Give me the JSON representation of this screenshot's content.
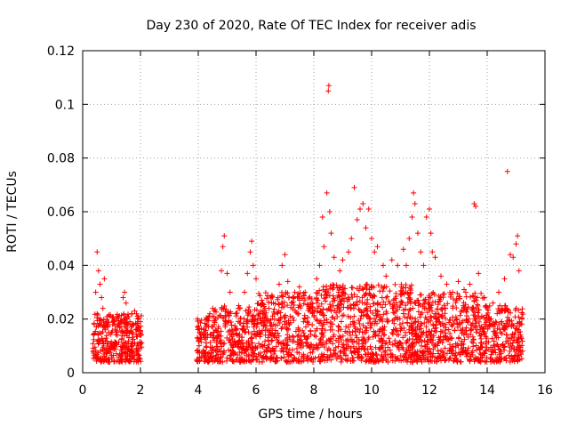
{
  "chart_data": {
    "type": "scatter",
    "title": "Day 230 of 2020, Rate Of TEC Index for receiver adis",
    "xlabel": "GPS time / hours",
    "ylabel": "ROTI / TECUs",
    "xlim": [
      0,
      16
    ],
    "ylim": [
      0,
      0.12
    ],
    "x_ticks": [
      0,
      2,
      4,
      6,
      8,
      10,
      12,
      14,
      16
    ],
    "x_tick_labels": [
      "0",
      "2",
      "4",
      "6",
      "8",
      "10",
      "12",
      "14",
      "16"
    ],
    "y_ticks": [
      0,
      0.02,
      0.04,
      0.06,
      0.08,
      0.1,
      0.12
    ],
    "y_tick_labels": [
      "0",
      "0.02",
      "0.04",
      "0.06",
      "0.08",
      "0.1",
      "0.12"
    ],
    "grid": true,
    "marker": "+",
    "color": "#ff0000",
    "series": [
      {
        "name": "ROTI",
        "points": [
          [
            0.45,
            0.03
          ],
          [
            0.5,
            0.045
          ],
          [
            0.55,
            0.038
          ],
          [
            0.6,
            0.033
          ],
          [
            0.65,
            0.028
          ],
          [
            0.7,
            0.024
          ],
          [
            0.75,
            0.035
          ],
          [
            0.4,
            0.018
          ],
          [
            0.5,
            0.022
          ],
          [
            0.6,
            0.02
          ],
          [
            0.8,
            0.019
          ],
          [
            1.0,
            0.015
          ],
          [
            1.2,
            0.017
          ],
          [
            1.4,
            0.028
          ],
          [
            1.45,
            0.03
          ],
          [
            1.5,
            0.026
          ],
          [
            1.7,
            0.022
          ],
          [
            1.8,
            0.023
          ],
          [
            1.9,
            0.021
          ],
          [
            2.0,
            0.019
          ],
          [
            4.3,
            0.018
          ],
          [
            4.4,
            0.022
          ],
          [
            4.5,
            0.024
          ],
          [
            4.6,
            0.02
          ],
          [
            4.8,
            0.038
          ],
          [
            4.85,
            0.047
          ],
          [
            4.9,
            0.051
          ],
          [
            5.0,
            0.037
          ],
          [
            5.1,
            0.03
          ],
          [
            5.3,
            0.022
          ],
          [
            5.4,
            0.025
          ],
          [
            5.6,
            0.03
          ],
          [
            5.7,
            0.037
          ],
          [
            5.8,
            0.045
          ],
          [
            5.85,
            0.049
          ],
          [
            5.9,
            0.04
          ],
          [
            6.0,
            0.035
          ],
          [
            6.2,
            0.027
          ],
          [
            6.4,
            0.02
          ],
          [
            6.6,
            0.026
          ],
          [
            6.8,
            0.033
          ],
          [
            6.9,
            0.04
          ],
          [
            7.0,
            0.044
          ],
          [
            7.1,
            0.034
          ],
          [
            7.3,
            0.028
          ],
          [
            7.5,
            0.032
          ],
          [
            7.7,
            0.03
          ],
          [
            7.9,
            0.026
          ],
          [
            8.1,
            0.035
          ],
          [
            8.2,
            0.04
          ],
          [
            8.3,
            0.058
          ],
          [
            8.35,
            0.047
          ],
          [
            8.45,
            0.067
          ],
          [
            8.5,
            0.105
          ],
          [
            8.52,
            0.107
          ],
          [
            8.55,
            0.06
          ],
          [
            8.6,
            0.052
          ],
          [
            8.7,
            0.043
          ],
          [
            8.9,
            0.038
          ],
          [
            9.0,
            0.042
          ],
          [
            9.2,
            0.045
          ],
          [
            9.3,
            0.05
          ],
          [
            9.4,
            0.069
          ],
          [
            9.5,
            0.057
          ],
          [
            9.6,
            0.061
          ],
          [
            9.7,
            0.063
          ],
          [
            9.8,
            0.054
          ],
          [
            9.9,
            0.061
          ],
          [
            10.0,
            0.05
          ],
          [
            10.1,
            0.045
          ],
          [
            10.2,
            0.047
          ],
          [
            10.4,
            0.04
          ],
          [
            10.5,
            0.036
          ],
          [
            10.7,
            0.042
          ],
          [
            10.9,
            0.04
          ],
          [
            11.1,
            0.046
          ],
          [
            11.2,
            0.04
          ],
          [
            11.3,
            0.05
          ],
          [
            11.4,
            0.058
          ],
          [
            11.45,
            0.067
          ],
          [
            11.5,
            0.063
          ],
          [
            11.6,
            0.052
          ],
          [
            11.7,
            0.045
          ],
          [
            11.8,
            0.04
          ],
          [
            11.9,
            0.058
          ],
          [
            12.0,
            0.061
          ],
          [
            12.05,
            0.052
          ],
          [
            12.1,
            0.045
          ],
          [
            12.2,
            0.043
          ],
          [
            12.4,
            0.036
          ],
          [
            12.6,
            0.033
          ],
          [
            12.8,
            0.03
          ],
          [
            13.0,
            0.034
          ],
          [
            13.2,
            0.031
          ],
          [
            13.4,
            0.033
          ],
          [
            13.55,
            0.063
          ],
          [
            13.6,
            0.062
          ],
          [
            13.7,
            0.037
          ],
          [
            13.9,
            0.028
          ],
          [
            14.2,
            0.026
          ],
          [
            14.4,
            0.03
          ],
          [
            14.6,
            0.035
          ],
          [
            14.7,
            0.075
          ],
          [
            14.8,
            0.044
          ],
          [
            14.9,
            0.043
          ],
          [
            15.0,
            0.048
          ],
          [
            15.05,
            0.051
          ],
          [
            15.1,
            0.038
          ],
          [
            15.2,
            0.02
          ]
        ],
        "dense_bands": [
          {
            "x_range": [
              0.35,
              2.05
            ],
            "y_range": [
              0.004,
              0.022
            ],
            "count": 360
          },
          {
            "x_range": [
              3.95,
              4.5
            ],
            "y_range": [
              0.004,
              0.022
            ],
            "count": 100
          },
          {
            "x_range": [
              4.5,
              6.0
            ],
            "y_range": [
              0.004,
              0.025
            ],
            "count": 280
          },
          {
            "x_range": [
              6.0,
              8.0
            ],
            "y_range": [
              0.004,
              0.03
            ],
            "count": 380
          },
          {
            "x_range": [
              8.0,
              11.5
            ],
            "y_range": [
              0.004,
              0.033
            ],
            "count": 700
          },
          {
            "x_range": [
              11.5,
              13.9
            ],
            "y_range": [
              0.004,
              0.03
            ],
            "count": 480
          },
          {
            "x_range": [
              13.9,
              15.25
            ],
            "y_range": [
              0.004,
              0.025
            ],
            "count": 240
          }
        ]
      }
    ]
  }
}
